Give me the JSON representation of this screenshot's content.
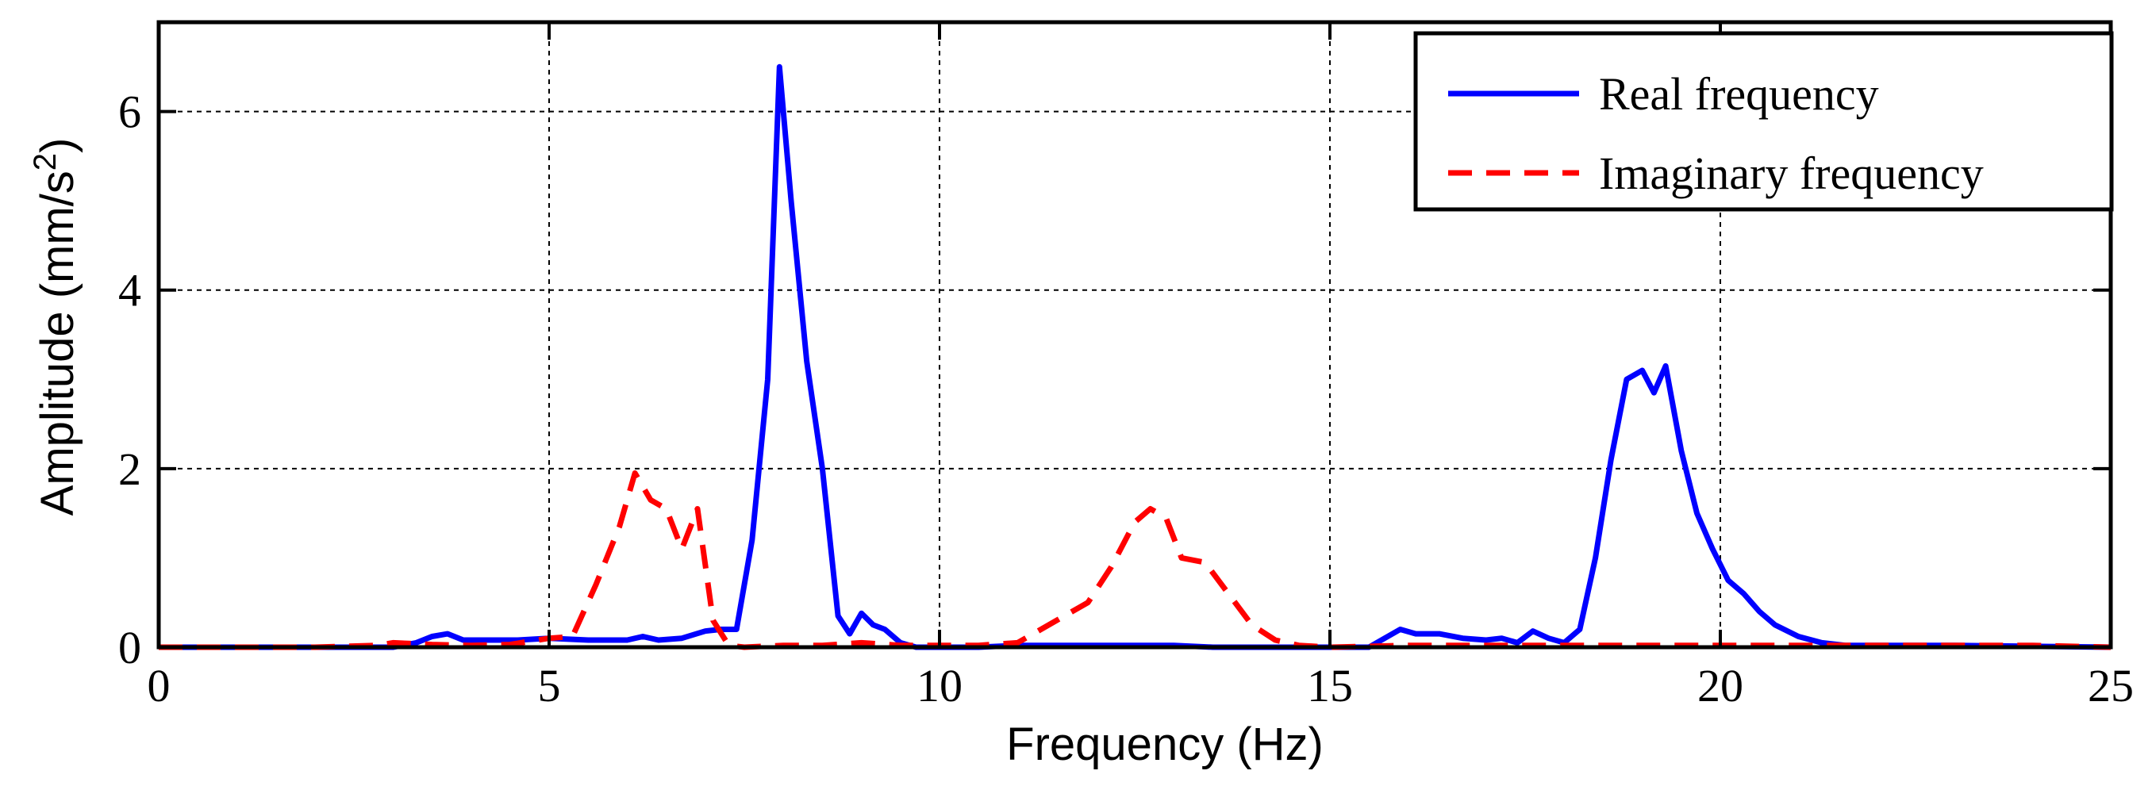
{
  "chart_data": {
    "type": "line",
    "xlabel": "Frequency (Hz)",
    "ylabel_main": "Amplitude (mm/s",
    "ylabel_sup": "2",
    "ylabel_tail": ")",
    "xlim": [
      0,
      25
    ],
    "ylim": [
      0,
      7
    ],
    "xticks": [
      0,
      5,
      10,
      15,
      20,
      25
    ],
    "yticks": [
      0,
      2,
      4,
      6
    ],
    "grid": true,
    "legend_position": "top-right",
    "series": [
      {
        "name": "Real frequency",
        "color": "#0000ff",
        "style": "solid",
        "x": [
          0,
          1,
          2,
          3,
          3.3,
          3.5,
          3.7,
          3.9,
          4.2,
          4.6,
          5.0,
          5.5,
          6.0,
          6.2,
          6.4,
          6.7,
          7.0,
          7.2,
          7.4,
          7.6,
          7.8,
          7.95,
          8.1,
          8.3,
          8.5,
          8.7,
          8.85,
          9.0,
          9.15,
          9.3,
          9.5,
          9.7,
          10.0,
          10.5,
          11.0,
          11.5,
          12.0,
          12.5,
          13.0,
          13.5,
          14.0,
          14.5,
          15.0,
          15.5,
          15.9,
          16.1,
          16.4,
          16.7,
          17.0,
          17.2,
          17.4,
          17.6,
          17.8,
          18.0,
          18.2,
          18.4,
          18.6,
          18.8,
          19.0,
          19.15,
          19.3,
          19.5,
          19.7,
          19.9,
          20.1,
          20.3,
          20.5,
          20.7,
          21.0,
          21.3,
          21.6,
          22.0,
          23.0,
          24.0,
          25.0
        ],
        "y": [
          0,
          0,
          0,
          0,
          0.05,
          0.12,
          0.15,
          0.08,
          0.08,
          0.08,
          0.1,
          0.08,
          0.08,
          0.12,
          0.08,
          0.1,
          0.18,
          0.2,
          0.2,
          1.2,
          3.0,
          6.5,
          5.0,
          3.2,
          2.0,
          0.35,
          0.15,
          0.38,
          0.25,
          0.2,
          0.05,
          0.0,
          0.0,
          0.0,
          0.02,
          0.02,
          0.02,
          0.02,
          0.02,
          0.0,
          0.0,
          0.0,
          0.0,
          0.0,
          0.2,
          0.15,
          0.15,
          0.1,
          0.08,
          0.1,
          0.05,
          0.18,
          0.1,
          0.05,
          0.2,
          1.0,
          2.1,
          3.0,
          3.1,
          2.85,
          3.15,
          2.2,
          1.5,
          1.1,
          0.75,
          0.6,
          0.4,
          0.25,
          0.12,
          0.05,
          0.02,
          0.02,
          0.02,
          0.01,
          0.0
        ]
      },
      {
        "name": "Imaginary frequency",
        "color": "#ff0000",
        "style": "dashed",
        "x": [
          0,
          1,
          2,
          2.8,
          3.0,
          3.5,
          4.0,
          4.5,
          5.0,
          5.3,
          5.6,
          5.9,
          6.1,
          6.3,
          6.5,
          6.7,
          6.9,
          7.1,
          7.3,
          7.5,
          8.0,
          8.5,
          9.0,
          9.5,
          10.0,
          10.5,
          11.0,
          11.5,
          11.9,
          12.2,
          12.5,
          12.7,
          12.9,
          13.1,
          13.4,
          13.7,
          14.0,
          14.3,
          14.6,
          15.0,
          16.0,
          17.0,
          18.0,
          19.0,
          20.0,
          21.0,
          22.0,
          23.0,
          24.0,
          25.0
        ],
        "y": [
          0,
          0,
          0,
          0.02,
          0.05,
          0.03,
          0.02,
          0.03,
          0.1,
          0.12,
          0.7,
          1.35,
          1.95,
          1.65,
          1.55,
          1.1,
          1.55,
          0.3,
          0.02,
          0.0,
          0.02,
          0.02,
          0.05,
          0.02,
          0.02,
          0.02,
          0.05,
          0.3,
          0.5,
          0.9,
          1.4,
          1.55,
          1.45,
          1.0,
          0.95,
          0.6,
          0.25,
          0.08,
          0.02,
          0.0,
          0.02,
          0.02,
          0.02,
          0.02,
          0.02,
          0.02,
          0.02,
          0.02,
          0.02,
          0.0
        ]
      }
    ]
  }
}
